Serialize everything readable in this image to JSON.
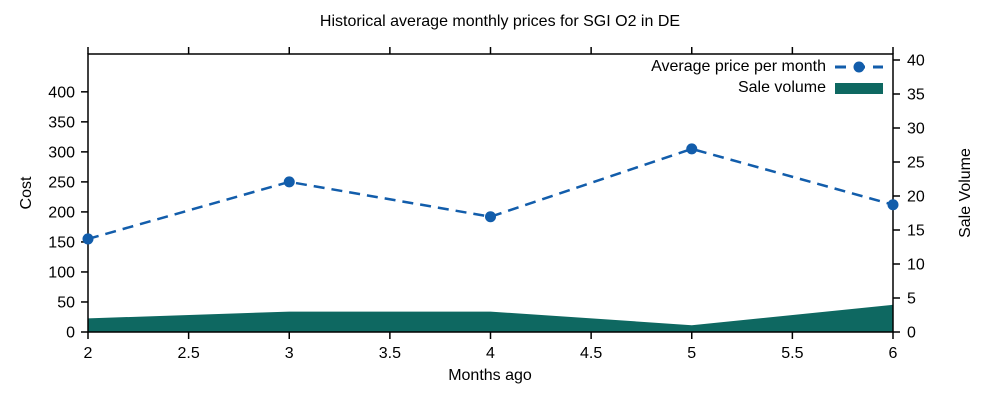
{
  "title": "Historical average monthly prices for SGI O2 in DE",
  "chart_data": {
    "type": "line",
    "title": "Historical average monthly prices for SGI O2 in DE",
    "x": [
      2,
      3,
      4,
      5,
      6
    ],
    "series": [
      {
        "name": "Average price per month",
        "type": "line",
        "axis": "left",
        "style": "dashed",
        "marker": "filled-circle",
        "color": "#125dab",
        "values": [
          155,
          250,
          192,
          305,
          212
        ]
      },
      {
        "name": "Sale volume",
        "type": "area",
        "axis": "right",
        "color": "#0e6861",
        "values": [
          2,
          3,
          3,
          1,
          4
        ]
      }
    ],
    "xlabel": "Months ago",
    "ylabel": "Cost",
    "y2label": "Sale Volume",
    "xlim": [
      2,
      6
    ],
    "ylim": [
      0,
      463
    ],
    "y2lim": [
      0,
      40
    ],
    "xticks": [
      2,
      2.5,
      3,
      3.5,
      4,
      4.5,
      5,
      5.5,
      6
    ],
    "yticks": [
      0,
      50,
      100,
      150,
      200,
      250,
      300,
      350,
      400
    ],
    "y2ticks": [
      0,
      5,
      10,
      15,
      20,
      25,
      30,
      35,
      40
    ],
    "grid": false,
    "legend_position": "top-right-inside",
    "tick_direction": "out",
    "background": "#ffffff",
    "border_color": "#000000"
  }
}
